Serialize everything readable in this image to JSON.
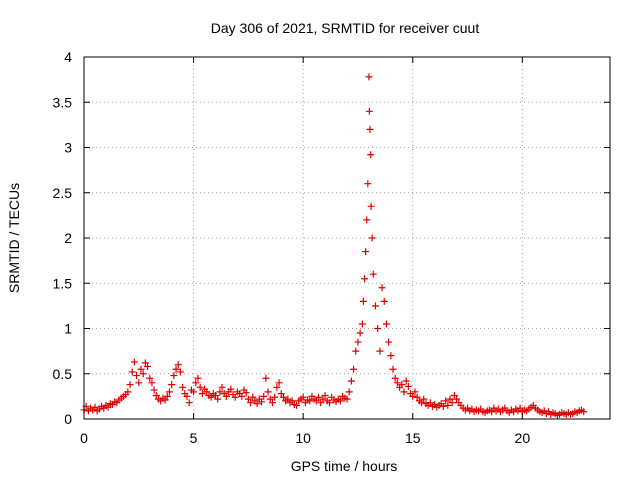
{
  "colors": {
    "series": "#e00000",
    "frame": "#000000",
    "grid": "#a0a0a0"
  },
  "chart_data": {
    "type": "scatter",
    "title": "Day 306 of 2021, SRMTID for receiver cuut",
    "xlabel": "GPS time / hours",
    "ylabel": "SRMTID / TECUs",
    "xlim": [
      0,
      24
    ],
    "ylim": [
      0,
      4
    ],
    "xticks": [
      0,
      5,
      10,
      15,
      20
    ],
    "yticks": [
      0,
      0.5,
      1,
      1.5,
      2,
      2.5,
      3,
      3.5,
      4
    ],
    "xtick_labels": [
      "0",
      "5",
      "10",
      "15",
      "20"
    ],
    "ytick_labels": [
      "0",
      "0.5",
      "1",
      "1.5",
      "2",
      "2.5",
      "3",
      "3.5",
      "4"
    ],
    "grid": true,
    "marker": "plus",
    "series": [
      {
        "name": "cuut",
        "points": [
          [
            0.0,
            0.1
          ],
          [
            0.1,
            0.14
          ],
          [
            0.2,
            0.09
          ],
          [
            0.3,
            0.12
          ],
          [
            0.4,
            0.1
          ],
          [
            0.5,
            0.13
          ],
          [
            0.6,
            0.09
          ],
          [
            0.7,
            0.11
          ],
          [
            0.8,
            0.14
          ],
          [
            0.9,
            0.12
          ],
          [
            1.0,
            0.15
          ],
          [
            1.1,
            0.13
          ],
          [
            1.2,
            0.17
          ],
          [
            1.3,
            0.16
          ],
          [
            1.4,
            0.19
          ],
          [
            1.5,
            0.18
          ],
          [
            1.6,
            0.21
          ],
          [
            1.7,
            0.23
          ],
          [
            1.8,
            0.25
          ],
          [
            1.9,
            0.27
          ],
          [
            2.0,
            0.3
          ],
          [
            2.1,
            0.38
          ],
          [
            2.2,
            0.52
          ],
          [
            2.3,
            0.63
          ],
          [
            2.4,
            0.48
          ],
          [
            2.5,
            0.4
          ],
          [
            2.6,
            0.55
          ],
          [
            2.7,
            0.5
          ],
          [
            2.8,
            0.62
          ],
          [
            2.9,
            0.58
          ],
          [
            3.0,
            0.45
          ],
          [
            3.1,
            0.4
          ],
          [
            3.2,
            0.32
          ],
          [
            3.3,
            0.26
          ],
          [
            3.4,
            0.22
          ],
          [
            3.5,
            0.2
          ],
          [
            3.6,
            0.23
          ],
          [
            3.7,
            0.21
          ],
          [
            3.8,
            0.25
          ],
          [
            3.9,
            0.3
          ],
          [
            4.0,
            0.38
          ],
          [
            4.1,
            0.48
          ],
          [
            4.2,
            0.55
          ],
          [
            4.3,
            0.6
          ],
          [
            4.4,
            0.52
          ],
          [
            4.5,
            0.35
          ],
          [
            4.6,
            0.28
          ],
          [
            4.7,
            0.25
          ],
          [
            4.8,
            0.18
          ],
          [
            4.9,
            0.32
          ],
          [
            5.0,
            0.3
          ],
          [
            5.1,
            0.4
          ],
          [
            5.2,
            0.45
          ],
          [
            5.3,
            0.35
          ],
          [
            5.4,
            0.28
          ],
          [
            5.5,
            0.33
          ],
          [
            5.6,
            0.3
          ],
          [
            5.7,
            0.26
          ],
          [
            5.8,
            0.24
          ],
          [
            5.9,
            0.28
          ],
          [
            6.0,
            0.26
          ],
          [
            6.1,
            0.22
          ],
          [
            6.2,
            0.3
          ],
          [
            6.3,
            0.35
          ],
          [
            6.4,
            0.28
          ],
          [
            6.5,
            0.25
          ],
          [
            6.6,
            0.3
          ],
          [
            6.7,
            0.33
          ],
          [
            6.8,
            0.27
          ],
          [
            6.9,
            0.24
          ],
          [
            7.0,
            0.3
          ],
          [
            7.1,
            0.28
          ],
          [
            7.2,
            0.25
          ],
          [
            7.3,
            0.32
          ],
          [
            7.4,
            0.29
          ],
          [
            7.5,
            0.22
          ],
          [
            7.6,
            0.18
          ],
          [
            7.7,
            0.24
          ],
          [
            7.8,
            0.2
          ],
          [
            7.9,
            0.17
          ],
          [
            8.0,
            0.22
          ],
          [
            8.1,
            0.19
          ],
          [
            8.2,
            0.25
          ],
          [
            8.3,
            0.45
          ],
          [
            8.4,
            0.3
          ],
          [
            8.5,
            0.22
          ],
          [
            8.6,
            0.18
          ],
          [
            8.7,
            0.24
          ],
          [
            8.8,
            0.35
          ],
          [
            8.9,
            0.4
          ],
          [
            9.0,
            0.28
          ],
          [
            9.1,
            0.24
          ],
          [
            9.2,
            0.2
          ],
          [
            9.3,
            0.22
          ],
          [
            9.4,
            0.18
          ],
          [
            9.5,
            0.2
          ],
          [
            9.6,
            0.16
          ],
          [
            9.7,
            0.15
          ],
          [
            9.8,
            0.2
          ],
          [
            9.9,
            0.22
          ],
          [
            10.0,
            0.24
          ],
          [
            10.1,
            0.18
          ],
          [
            10.2,
            0.21
          ],
          [
            10.3,
            0.2
          ],
          [
            10.4,
            0.25
          ],
          [
            10.5,
            0.22
          ],
          [
            10.6,
            0.2
          ],
          [
            10.7,
            0.24
          ],
          [
            10.8,
            0.18
          ],
          [
            10.9,
            0.22
          ],
          [
            11.0,
            0.26
          ],
          [
            11.1,
            0.2
          ],
          [
            11.2,
            0.18
          ],
          [
            11.3,
            0.24
          ],
          [
            11.4,
            0.21
          ],
          [
            11.5,
            0.19
          ],
          [
            11.6,
            0.22
          ],
          [
            11.7,
            0.2
          ],
          [
            11.8,
            0.25
          ],
          [
            11.9,
            0.23
          ],
          [
            12.0,
            0.22
          ],
          [
            12.1,
            0.3
          ],
          [
            12.2,
            0.42
          ],
          [
            12.3,
            0.55
          ],
          [
            12.4,
            0.75
          ],
          [
            12.5,
            0.85
          ],
          [
            12.6,
            0.95
          ],
          [
            12.7,
            1.05
          ],
          [
            12.75,
            1.3
          ],
          [
            12.8,
            1.55
          ],
          [
            12.85,
            1.85
          ],
          [
            12.9,
            2.2
          ],
          [
            12.95,
            2.6
          ],
          [
            13.0,
            3.78
          ],
          [
            13.02,
            3.4
          ],
          [
            13.05,
            3.2
          ],
          [
            13.08,
            2.92
          ],
          [
            13.1,
            2.35
          ],
          [
            13.15,
            2.0
          ],
          [
            13.2,
            1.6
          ],
          [
            13.3,
            1.25
          ],
          [
            13.4,
            1.0
          ],
          [
            13.5,
            0.75
          ],
          [
            13.6,
            1.45
          ],
          [
            13.7,
            1.3
          ],
          [
            13.8,
            1.05
          ],
          [
            13.9,
            0.85
          ],
          [
            14.0,
            0.7
          ],
          [
            14.1,
            0.55
          ],
          [
            14.2,
            0.45
          ],
          [
            14.3,
            0.4
          ],
          [
            14.4,
            0.35
          ],
          [
            14.5,
            0.38
          ],
          [
            14.6,
            0.3
          ],
          [
            14.7,
            0.42
          ],
          [
            14.8,
            0.36
          ],
          [
            14.9,
            0.28
          ],
          [
            15.0,
            0.25
          ],
          [
            15.1,
            0.3
          ],
          [
            15.2,
            0.24
          ],
          [
            15.3,
            0.2
          ],
          [
            15.4,
            0.18
          ],
          [
            15.5,
            0.22
          ],
          [
            15.6,
            0.17
          ],
          [
            15.7,
            0.15
          ],
          [
            15.8,
            0.18
          ],
          [
            15.9,
            0.14
          ],
          [
            16.0,
            0.16
          ],
          [
            16.1,
            0.13
          ],
          [
            16.2,
            0.15
          ],
          [
            16.3,
            0.17
          ],
          [
            16.4,
            0.14
          ],
          [
            16.5,
            0.2
          ],
          [
            16.6,
            0.15
          ],
          [
            16.7,
            0.22
          ],
          [
            16.8,
            0.18
          ],
          [
            16.9,
            0.26
          ],
          [
            17.0,
            0.22
          ],
          [
            17.1,
            0.18
          ],
          [
            17.2,
            0.15
          ],
          [
            17.3,
            0.12
          ],
          [
            17.4,
            0.1
          ],
          [
            17.5,
            0.12
          ],
          [
            17.6,
            0.09
          ],
          [
            17.7,
            0.11
          ],
          [
            17.8,
            0.08
          ],
          [
            17.9,
            0.1
          ],
          [
            18.0,
            0.09
          ],
          [
            18.1,
            0.11
          ],
          [
            18.2,
            0.08
          ],
          [
            18.3,
            0.07
          ],
          [
            18.4,
            0.09
          ],
          [
            18.5,
            0.1
          ],
          [
            18.6,
            0.08
          ],
          [
            18.7,
            0.12
          ],
          [
            18.8,
            0.09
          ],
          [
            18.9,
            0.11
          ],
          [
            19.0,
            0.08
          ],
          [
            19.1,
            0.1
          ],
          [
            19.2,
            0.12
          ],
          [
            19.3,
            0.09
          ],
          [
            19.4,
            0.07
          ],
          [
            19.5,
            0.1
          ],
          [
            19.6,
            0.08
          ],
          [
            19.7,
            0.11
          ],
          [
            19.8,
            0.09
          ],
          [
            19.9,
            0.12
          ],
          [
            20.0,
            0.08
          ],
          [
            20.1,
            0.1
          ],
          [
            20.2,
            0.09
          ],
          [
            20.3,
            0.11
          ],
          [
            20.4,
            0.13
          ],
          [
            20.5,
            0.15
          ],
          [
            20.6,
            0.12
          ],
          [
            20.7,
            0.1
          ],
          [
            20.8,
            0.08
          ],
          [
            20.9,
            0.07
          ],
          [
            21.0,
            0.09
          ],
          [
            21.1,
            0.06
          ],
          [
            21.2,
            0.08
          ],
          [
            21.3,
            0.05
          ],
          [
            21.4,
            0.07
          ],
          [
            21.5,
            0.06
          ],
          [
            21.6,
            0.04
          ],
          [
            21.7,
            0.05
          ],
          [
            21.8,
            0.07
          ],
          [
            21.9,
            0.06
          ],
          [
            22.0,
            0.05
          ],
          [
            22.1,
            0.07
          ],
          [
            22.2,
            0.05
          ],
          [
            22.3,
            0.06
          ],
          [
            22.4,
            0.08
          ],
          [
            22.5,
            0.07
          ],
          [
            22.6,
            0.09
          ],
          [
            22.7,
            0.1
          ],
          [
            22.8,
            0.08
          ]
        ]
      }
    ]
  }
}
